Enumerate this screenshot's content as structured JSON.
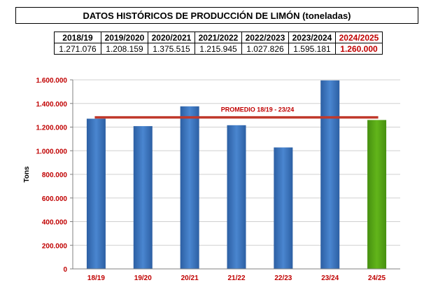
{
  "title": "DATOS HISTÓRICOS DE PRODUCCIÓN DE LIMÓN (toneladas)",
  "table": {
    "headers": [
      "2018/19",
      "2019/2020",
      "2020/2021",
      "2021/2022",
      "2022/2023",
      "2023/2024",
      "2024/2025"
    ],
    "values": [
      "1.271.076",
      "1.208.159",
      "1.375.515",
      "1.215.945",
      "1.027.826",
      "1.595.181",
      "1.260.000"
    ],
    "highlight_last": true
  },
  "colors": {
    "bar": "#3f78c2",
    "bar_highlight": "#55a614",
    "average_line": "#c0392b",
    "tick_label": "#c00000",
    "grid": "#d0d0d0"
  },
  "chart_data": {
    "type": "bar",
    "categories": [
      "18/19",
      "19/20",
      "20/21",
      "21/22",
      "22/23",
      "23/24",
      "24/25"
    ],
    "values": [
      1271076,
      1208159,
      1375515,
      1215945,
      1027826,
      1595181,
      1260000
    ],
    "highlight_index": 6,
    "ylabel": "Tons",
    "ylim": [
      0,
      1600000
    ],
    "yticks": [
      0,
      200000,
      400000,
      600000,
      800000,
      1000000,
      1200000,
      1400000,
      1600000
    ],
    "ytick_labels": [
      "0",
      "200.000",
      "400.000",
      "600.000",
      "800.000",
      "1.000.000",
      "1.200.000",
      "1.400.000",
      "1.600.000"
    ],
    "grid": true,
    "average": {
      "label": "PROMEDIO 18/19 - 23/24",
      "value": 1282284
    }
  }
}
